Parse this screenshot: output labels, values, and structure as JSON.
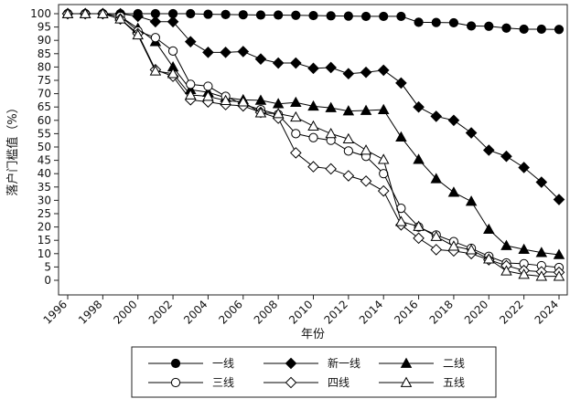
{
  "chart_data": {
    "type": "line",
    "title": "",
    "xlabel": "年份",
    "ylabel": "落户门槛值（%）",
    "xlim": [
      1996,
      2024
    ],
    "ylim": [
      0,
      100
    ],
    "x_ticks": [
      "1996",
      "1998",
      "2000",
      "2002",
      "2004",
      "2006",
      "2008",
      "2010",
      "2012",
      "2014",
      "2016",
      "2018",
      "2020",
      "2022",
      "2024"
    ],
    "y_ticks": [
      "0",
      "5",
      "10",
      "15",
      "20",
      "25",
      "30",
      "35",
      "40",
      "45",
      "50",
      "55",
      "60",
      "65",
      "70",
      "75",
      "80",
      "85",
      "90",
      "95",
      "100"
    ],
    "grid": false,
    "legend_position": "bottom",
    "x": [
      1996,
      1997,
      1998,
      1999,
      2000,
      2001,
      2002,
      2003,
      2004,
      2005,
      2006,
      2007,
      2008,
      2009,
      2010,
      2011,
      2012,
      2013,
      2014,
      2015,
      2016,
      2017,
      2018,
      2019,
      2020,
      2021,
      2022,
      2023,
      2024
    ],
    "series": [
      {
        "name": "一线",
        "marker": "circle-filled",
        "values": [
          100,
          100,
          100,
          100,
          100,
          100,
          100,
          100,
          99.8,
          99.7,
          99.6,
          99.5,
          99.5,
          99.4,
          99.3,
          99.2,
          99.1,
          99.0,
          99.0,
          99.0,
          96.8,
          96.7,
          96.6,
          95.4,
          95.3,
          94.6,
          94.2,
          94.2,
          94.1
        ]
      },
      {
        "name": "新一线",
        "marker": "diamond-filled",
        "values": [
          100,
          100,
          100,
          100,
          99,
          97,
          97,
          89.5,
          85.5,
          85.5,
          85.8,
          83,
          81.5,
          81.5,
          79.5,
          79.8,
          77.5,
          78,
          78.8,
          74,
          65,
          61.5,
          60,
          55.3,
          48.8,
          46.5,
          42.3,
          36.8,
          30.3
        ]
      },
      {
        "name": "二线",
        "marker": "triangle-filled",
        "values": [
          100,
          100,
          100,
          99,
          94.5,
          89.5,
          80,
          71.5,
          70.5,
          68.5,
          67.7,
          67.5,
          66.2,
          66.7,
          65.3,
          64.7,
          63.5,
          63.7,
          64,
          53.7,
          45.3,
          38.1,
          33,
          29.6,
          19.1,
          13,
          11.6,
          10.4,
          9.6
        ]
      },
      {
        "name": "三线",
        "marker": "circle-open",
        "values": [
          100,
          100,
          100,
          99,
          93.5,
          91,
          86,
          73.5,
          72.8,
          69,
          66,
          64,
          62.2,
          55,
          53.5,
          52.5,
          48.5,
          46.5,
          40,
          27,
          20,
          17,
          14.5,
          12,
          9,
          6.5,
          6.2,
          5.5,
          4.8
        ]
      },
      {
        "name": "四线",
        "marker": "diamond-open",
        "values": [
          100,
          100,
          100,
          98,
          92.5,
          79,
          76.5,
          67.7,
          66.9,
          65.9,
          65.4,
          63,
          60.8,
          47.8,
          42.6,
          41.8,
          39.2,
          37.2,
          33.5,
          20.8,
          15.8,
          11.5,
          11,
          10,
          7.7,
          5.5,
          3.7,
          3.2,
          3.0
        ]
      },
      {
        "name": "五线",
        "marker": "triangle-open",
        "values": [
          100,
          100,
          100,
          98,
          92,
          78.5,
          77.5,
          69.5,
          69,
          67.4,
          66.9,
          62.8,
          62.5,
          61.2,
          57.8,
          55,
          53,
          48.8,
          45.3,
          22,
          20.2,
          16.4,
          12.8,
          11.4,
          8,
          3.5,
          2.2,
          1.5,
          1.5
        ]
      }
    ]
  }
}
